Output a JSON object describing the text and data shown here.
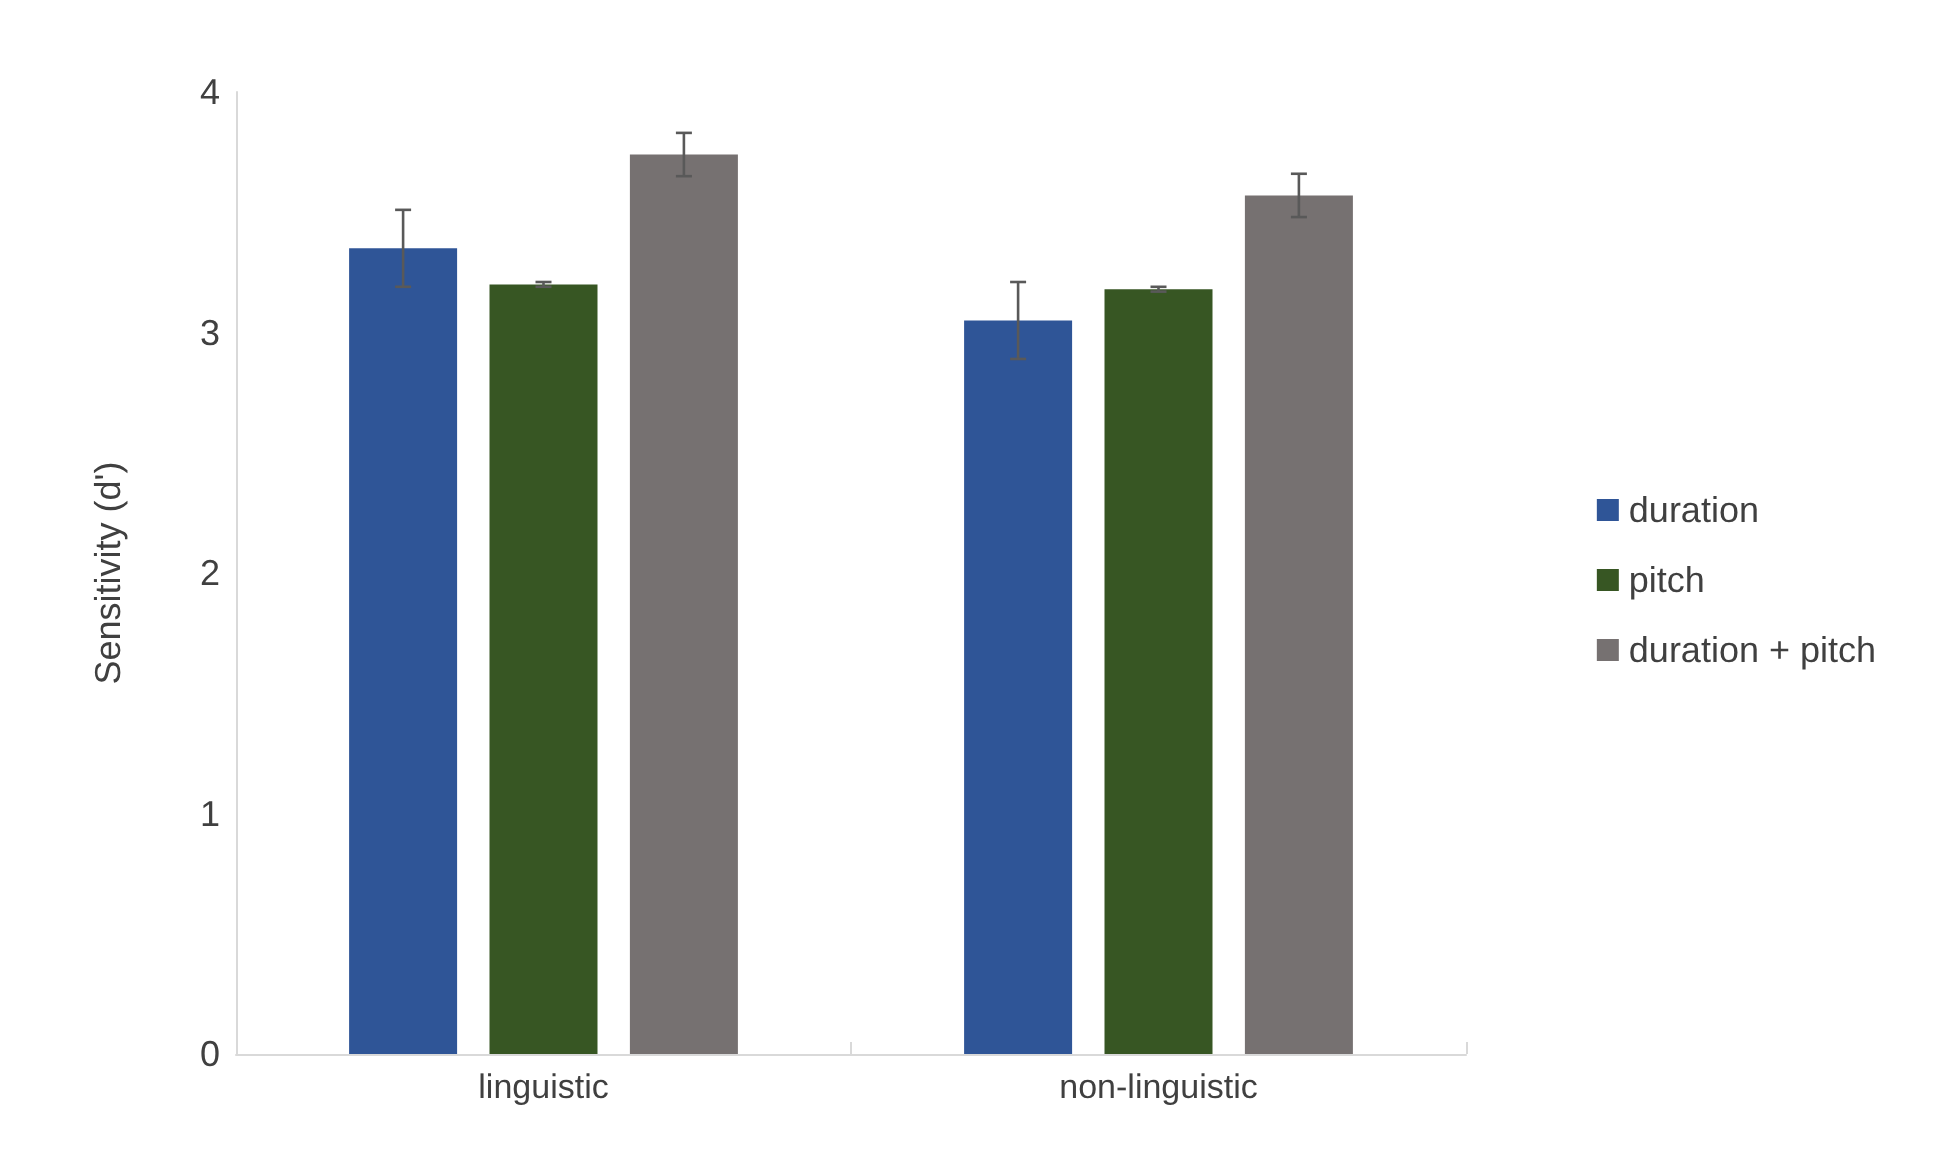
{
  "chart_data": {
    "type": "bar",
    "ylabel": "Sensitivity (d')",
    "categories": [
      "linguistic",
      "non-linguistic"
    ],
    "series": [
      {
        "name": "duration",
        "color": "#2f5597",
        "values": [
          3.35,
          3.05
        ],
        "errors": [
          0.16,
          0.16
        ]
      },
      {
        "name": "pitch",
        "color": "#375623",
        "values": [
          3.2,
          3.18
        ],
        "errors": [
          0.01,
          0.01
        ]
      },
      {
        "name": "duration + pitch",
        "color": "#767171",
        "values": [
          3.74,
          3.57
        ],
        "errors": [
          0.09,
          0.09
        ]
      }
    ],
    "ylim": [
      0,
      4
    ],
    "yticks": [
      0,
      1,
      2,
      3,
      4
    ],
    "grid": false,
    "legend": "right"
  }
}
